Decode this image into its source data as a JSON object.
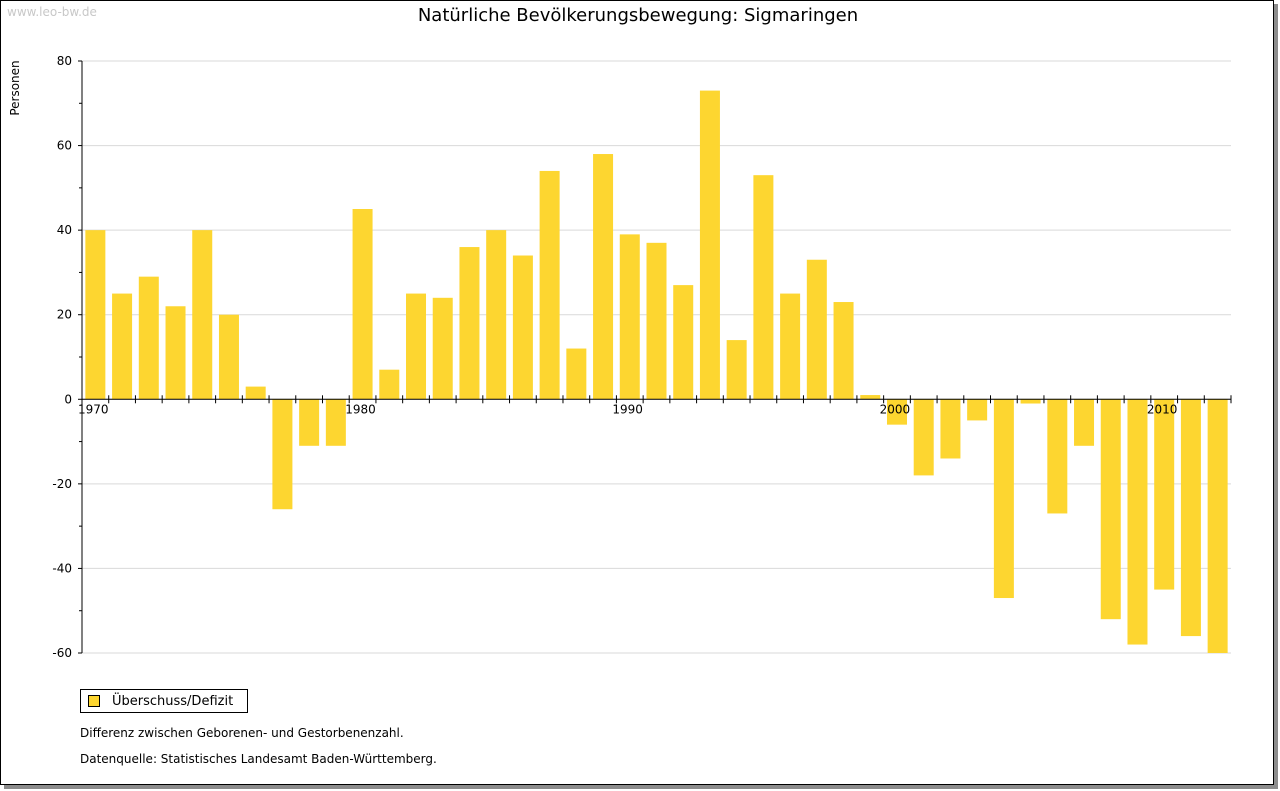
{
  "watermark": "www.leo-bw.de",
  "legend": {
    "label": "Überschuss/Defizit"
  },
  "notes": {
    "line1": "Differenz zwischen Geborenen- und Gestorbenenzahl.",
    "line2": "Datenquelle: Statistisches Landesamt Baden-Württemberg."
  },
  "colors": {
    "bar": "#FDD630",
    "grid": "#d9d9d9"
  },
  "chart_data": {
    "type": "bar",
    "title": "Natürliche Bevölkerungsbewegung: Sigmaringen",
    "xlabel": "",
    "ylabel": "Personen",
    "ylim": [
      -60,
      80
    ],
    "yticks": [
      80,
      60,
      40,
      20,
      0,
      -20,
      -40,
      -60
    ],
    "xtick_labels": [
      "1970",
      "1980",
      "1990",
      "2000",
      "2010"
    ],
    "categories": [
      "1970",
      "1971",
      "1972",
      "1973",
      "1974",
      "1975",
      "1976",
      "1977",
      "1978",
      "1979",
      "1980",
      "1981",
      "1982",
      "1983",
      "1984",
      "1985",
      "1986",
      "1987",
      "1988",
      "1989",
      "1990",
      "1991",
      "1992",
      "1993",
      "1994",
      "1995",
      "1996",
      "1997",
      "1998",
      "1999",
      "2000",
      "2001",
      "2002",
      "2003",
      "2004",
      "2005",
      "2006",
      "2007",
      "2008",
      "2009",
      "2010",
      "2011",
      "2012"
    ],
    "series": [
      {
        "name": "Überschuss/Defizit",
        "values": [
          40,
          25,
          29,
          22,
          40,
          20,
          3,
          -26,
          -11,
          -11,
          45,
          7,
          25,
          24,
          36,
          40,
          34,
          54,
          12,
          58,
          39,
          37,
          27,
          73,
          14,
          53,
          25,
          33,
          23,
          1,
          -6,
          -18,
          -14,
          -5,
          -47,
          -1,
          -27,
          -11,
          -52,
          -58,
          -45,
          -56,
          -60
        ]
      }
    ]
  }
}
